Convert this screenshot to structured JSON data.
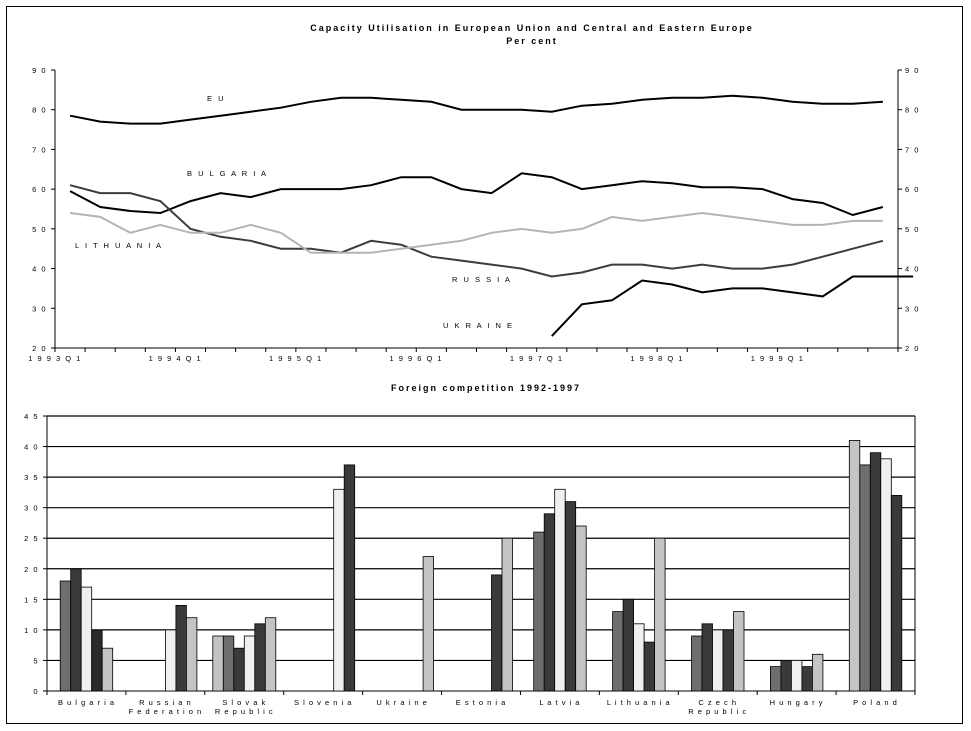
{
  "chart_data": [
    {
      "type": "line",
      "title": "Capacity Utilisation in European Union and Central and Eastern Europe",
      "subtitle": "Per cent",
      "ylim": [
        20,
        90
      ],
      "yticks": [
        "2 0",
        "3 0",
        "4 0",
        "5 0",
        "6 0",
        "7 0",
        "8 0",
        "9 0"
      ],
      "xticks": [
        "1 9 9 3 Q 1",
        "1 9 9 4 Q 1",
        "1 9 9 5 Q 1",
        "1 9 9 6 Q 1",
        "1 9 9 7 Q 1",
        "1 9 9 8 Q 1",
        "1 9 9 9 Q 1"
      ],
      "x_start": "1993Q1",
      "grid": false,
      "series": [
        {
          "name": "EU",
          "label": "E U",
          "color": "#000000",
          "width": 2,
          "start": 0,
          "values": [
            78.5,
            77,
            76.5,
            76.5,
            77.5,
            78.5,
            79.5,
            80.5,
            82,
            83,
            83,
            82.5,
            82,
            80,
            80,
            80,
            79.5,
            81,
            81.5,
            82.5,
            83,
            83,
            83.5,
            83,
            82,
            81.5,
            81.5,
            82
          ]
        },
        {
          "name": "BULGARIA",
          "label": "B U L G A R I A",
          "color": "#000000",
          "width": 2,
          "start": 0,
          "values": [
            59.5,
            55.5,
            54.5,
            54,
            57,
            59,
            58,
            60,
            60,
            60,
            61,
            63,
            63,
            60,
            59,
            64,
            63,
            60,
            61,
            62,
            61.5,
            60.5,
            60.5,
            60,
            57.5,
            56.5,
            53.5,
            55.5
          ]
        },
        {
          "name": "RUSSIA",
          "label": "R U S S I A",
          "color": "#3c3c3c",
          "width": 2,
          "start": 0,
          "values": [
            61,
            59,
            59,
            57,
            50,
            48,
            47,
            45,
            45,
            44,
            47,
            46,
            43,
            42,
            41,
            40,
            38,
            39,
            41,
            41,
            40,
            41,
            40,
            40,
            41,
            43,
            45,
            47
          ]
        },
        {
          "name": "LITHUANIA",
          "label": "L I T H U A N I A",
          "color": "#b4b4b4",
          "width": 2,
          "start": 0,
          "values": [
            54,
            53,
            49,
            51,
            49,
            49,
            51,
            49,
            44,
            44,
            44,
            45,
            46,
            47,
            49,
            50,
            49,
            50,
            53,
            52,
            53,
            54,
            53,
            52,
            51,
            51,
            52,
            52
          ]
        },
        {
          "name": "UKRAINE",
          "label": "U K R A I N E",
          "color": "#000000",
          "width": 2,
          "start": 16,
          "values": [
            23,
            31,
            32,
            37,
            36,
            34,
            35,
            35,
            34,
            33,
            38,
            38,
            38
          ]
        }
      ]
    },
    {
      "type": "bar",
      "title": "Foreign competition 1992-1997",
      "ylim": [
        0,
        45
      ],
      "yticks": [
        "0",
        "5",
        "1 0",
        "1 5",
        "2 0",
        "2 5",
        "3 0",
        "3 5",
        "4 0",
        "4 5"
      ],
      "grid": true,
      "categories": [
        {
          "label": [
            "B u l g a r i a"
          ],
          "bars": [
            {
              "v": 18,
              "c": "#6e6e6e"
            },
            {
              "v": 20,
              "c": "#3a3a3a"
            },
            {
              "v": 17,
              "c": "#f0f0f0"
            },
            {
              "v": 10,
              "c": "#2a2a2a"
            },
            {
              "v": 7,
              "c": "#c4c4c4"
            }
          ]
        },
        {
          "label": [
            "R u s s i a n",
            "F e d e r a t i o n"
          ],
          "bars": [
            {
              "v": 10,
              "c": "#f0f0f0"
            },
            {
              "v": 14,
              "c": "#3a3a3a"
            },
            {
              "v": 12,
              "c": "#c4c4c4"
            }
          ]
        },
        {
          "label": [
            "S l o v a k",
            "R e p u b l i c"
          ],
          "bars": [
            {
              "v": 9,
              "c": "#c4c4c4"
            },
            {
              "v": 9,
              "c": "#6e6e6e"
            },
            {
              "v": 7,
              "c": "#3a3a3a"
            },
            {
              "v": 9,
              "c": "#f0f0f0"
            },
            {
              "v": 11,
              "c": "#3a3a3a"
            },
            {
              "v": 12,
              "c": "#c4c4c4"
            }
          ]
        },
        {
          "label": [
            "S l o v e n i a"
          ],
          "bars": [
            {
              "v": 33,
              "c": "#f0f0f0"
            },
            {
              "v": 37,
              "c": "#3a3a3a"
            }
          ]
        },
        {
          "label": [
            "U k r a i n e"
          ],
          "bars": [
            {
              "v": 22,
              "c": "#c4c4c4"
            }
          ]
        },
        {
          "label": [
            "E s t o n i a"
          ],
          "bars": [
            {
              "v": 19,
              "c": "#3a3a3a"
            },
            {
              "v": 25,
              "c": "#c4c4c4"
            }
          ]
        },
        {
          "label": [
            "L a t v i a"
          ],
          "bars": [
            {
              "v": 26,
              "c": "#6e6e6e"
            },
            {
              "v": 29,
              "c": "#3a3a3a"
            },
            {
              "v": 33,
              "c": "#f0f0f0"
            },
            {
              "v": 31,
              "c": "#3a3a3a"
            },
            {
              "v": 27,
              "c": "#c4c4c4"
            }
          ]
        },
        {
          "label": [
            "L i t h u a n i a"
          ],
          "bars": [
            {
              "v": 13,
              "c": "#6e6e6e"
            },
            {
              "v": 15,
              "c": "#3a3a3a"
            },
            {
              "v": 11,
              "c": "#f0f0f0"
            },
            {
              "v": 8,
              "c": "#3a3a3a"
            },
            {
              "v": 25,
              "c": "#c4c4c4"
            }
          ]
        },
        {
          "label": [
            "C z e c h",
            "R e p u b l i c"
          ],
          "bars": [
            {
              "v": 9,
              "c": "#6e6e6e"
            },
            {
              "v": 11,
              "c": "#3a3a3a"
            },
            {
              "v": 10,
              "c": "#f0f0f0"
            },
            {
              "v": 10,
              "c": "#3a3a3a"
            },
            {
              "v": 13,
              "c": "#c4c4c4"
            }
          ]
        },
        {
          "label": [
            "H u n g a r y"
          ],
          "bars": [
            {
              "v": 4,
              "c": "#6e6e6e"
            },
            {
              "v": 5,
              "c": "#3a3a3a"
            },
            {
              "v": 5,
              "c": "#f0f0f0"
            },
            {
              "v": 4,
              "c": "#3a3a3a"
            },
            {
              "v": 6,
              "c": "#c4c4c4"
            }
          ]
        },
        {
          "label": [
            "P o l a n d"
          ],
          "bars": [
            {
              "v": 41,
              "c": "#c4c4c4"
            },
            {
              "v": 37,
              "c": "#6e6e6e"
            },
            {
              "v": 39,
              "c": "#3a3a3a"
            },
            {
              "v": 38,
              "c": "#f0f0f0"
            },
            {
              "v": 32,
              "c": "#3a3a3a"
            }
          ]
        }
      ]
    }
  ],
  "titles": {
    "line_title": "Capacity Utilisation in European Union and Central and Eastern Europe",
    "line_subtitle": "Per cent",
    "bar_title": "Foreign competition 1992-1997"
  }
}
